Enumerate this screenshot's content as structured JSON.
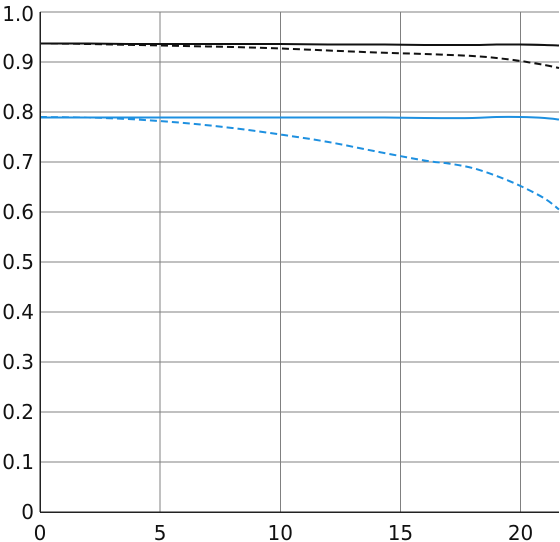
{
  "chart_data": {
    "type": "line",
    "title": "",
    "xlabel": "",
    "ylabel": "",
    "xlim": [
      0,
      21.6
    ],
    "ylim": [
      0,
      1.0
    ],
    "grid": true,
    "legend": "none",
    "x_ticks": [
      "0",
      "5",
      "10",
      "15",
      "20"
    ],
    "y_ticks": [
      "0",
      "0.1",
      "0.2",
      "0.3",
      "0.4",
      "0.5",
      "0.6",
      "0.7",
      "0.8",
      "0.9",
      "1.0"
    ],
    "series": [
      {
        "color": "#111111",
        "style": "solid",
        "x": [
          0,
          2,
          4,
          6,
          8,
          10,
          12,
          14,
          16,
          18,
          19,
          20,
          21,
          21.6
        ],
        "y": [
          0.937,
          0.937,
          0.936,
          0.936,
          0.936,
          0.936,
          0.935,
          0.935,
          0.934,
          0.934,
          0.935,
          0.935,
          0.934,
          0.933
        ]
      },
      {
        "color": "#111111",
        "style": "dashed",
        "x": [
          0,
          2,
          4,
          6,
          8,
          10,
          12,
          14,
          16,
          18,
          19,
          20,
          21,
          21.6
        ],
        "y": [
          0.937,
          0.936,
          0.934,
          0.932,
          0.93,
          0.927,
          0.923,
          0.919,
          0.916,
          0.912,
          0.908,
          0.902,
          0.894,
          0.888
        ]
      },
      {
        "color": "#1e90e0",
        "style": "solid",
        "x": [
          0,
          2,
          4,
          6,
          8,
          10,
          12,
          14,
          16,
          18,
          19,
          20,
          21,
          21.6
        ],
        "y": [
          0.789,
          0.789,
          0.789,
          0.789,
          0.789,
          0.789,
          0.789,
          0.789,
          0.788,
          0.788,
          0.79,
          0.79,
          0.788,
          0.785
        ]
      },
      {
        "color": "#1e90e0",
        "style": "dashed",
        "x": [
          0,
          2,
          4,
          6,
          8,
          10,
          12,
          14,
          16,
          17,
          18,
          19,
          20,
          21,
          21.6
        ],
        "y": [
          0.79,
          0.789,
          0.785,
          0.778,
          0.768,
          0.755,
          0.74,
          0.721,
          0.703,
          0.697,
          0.688,
          0.672,
          0.652,
          0.627,
          0.605
        ]
      }
    ]
  }
}
